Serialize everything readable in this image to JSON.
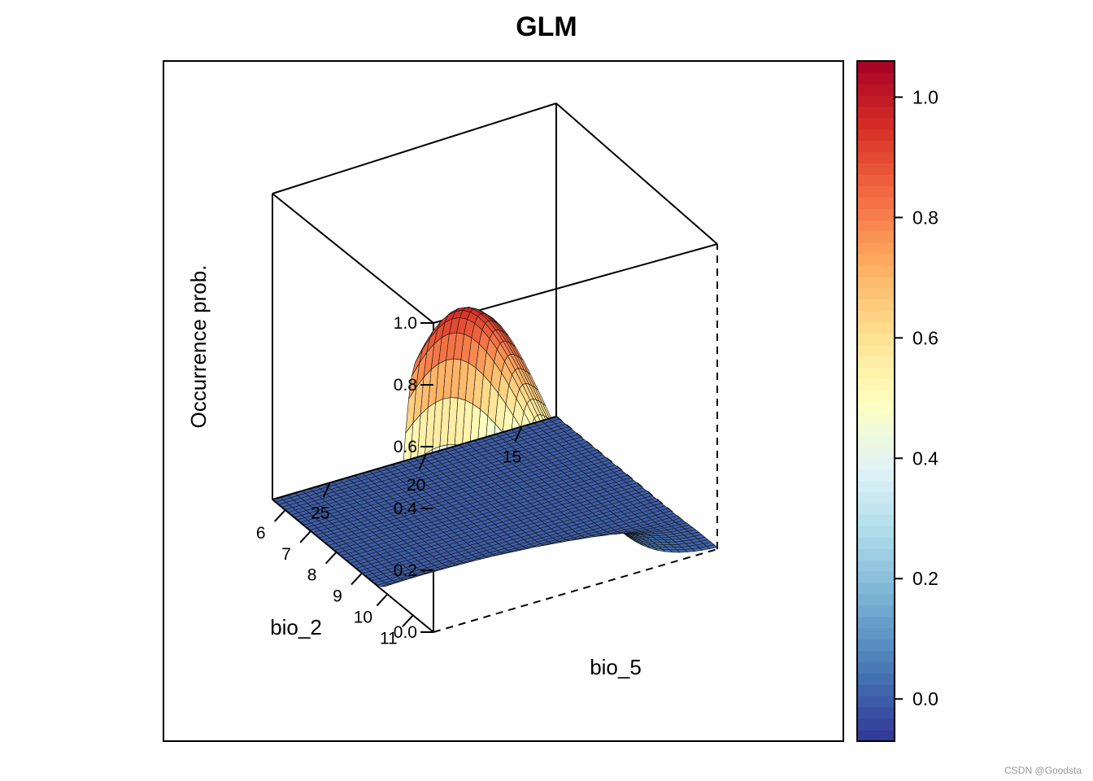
{
  "chart_data": {
    "type": "surface",
    "title": "GLM",
    "zlabel": "Occurrence prob.",
    "xlabel": "bio_2",
    "ylabel": "bio_5",
    "x_ticks": [
      "6",
      "7",
      "8",
      "9",
      "10",
      "11"
    ],
    "y_ticks": [
      "25",
      "20",
      "15"
    ],
    "z_ticks": [
      "0.0",
      "0.2",
      "0.4",
      "0.6",
      "0.8",
      "1.0"
    ],
    "xlim": [
      5.5,
      11.8
    ],
    "ylim": [
      13.2,
      28.0
    ],
    "zlim": [
      0,
      1
    ],
    "surface_model": {
      "description": "logistic in bio_2 x Gaussian in bio_5",
      "bio2_midpoint": 10.6,
      "bio2_slope": 5.5,
      "bio5_peak": 26.0,
      "bio5_sd": 4.0,
      "peak_probability": 1.0,
      "grid_cols_bio2": 52,
      "grid_rows_bio5": 38
    },
    "colorbar": {
      "ticks": [
        "0.0",
        "0.2",
        "0.4",
        "0.6",
        "0.8",
        "1.0"
      ],
      "range": [
        -0.07,
        1.06
      ],
      "palette": [
        "#313695",
        "#4575b4",
        "#74add1",
        "#abd9e9",
        "#e0f3f8",
        "#ffffbf",
        "#fee090",
        "#fdae61",
        "#f46d43",
        "#d73027",
        "#a50026"
      ]
    }
  },
  "watermark": "CSDN @Goodsta"
}
